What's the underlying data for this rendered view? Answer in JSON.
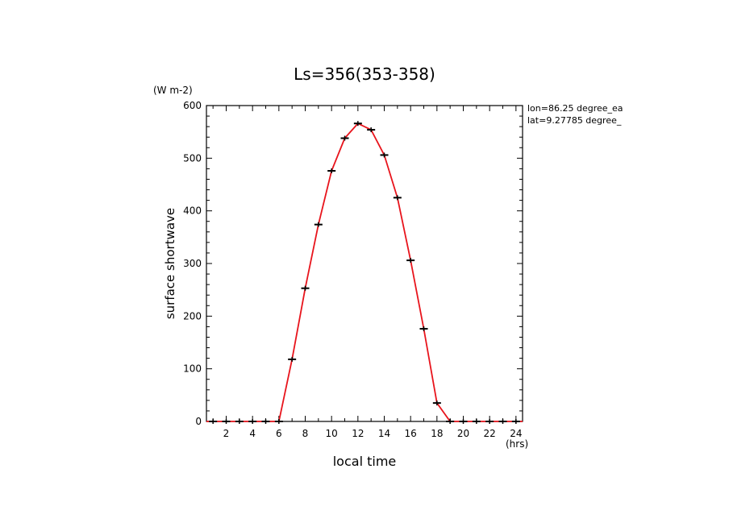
{
  "chart_data": {
    "type": "line",
    "title": "Ls=356(353-358)",
    "xlabel": "local time",
    "ylabel": "surface shortwave",
    "x_unit": "(hrs)",
    "y_unit": "(W m-2)",
    "annotations": [
      "lon=86.25 degree_ea",
      "lat=9.27785 degree_"
    ],
    "xlim": [
      0.5,
      24.5
    ],
    "ylim": [
      0,
      600
    ],
    "x_ticks": [
      "2",
      "4",
      "6",
      "8",
      "10",
      "12",
      "14",
      "16",
      "18",
      "20",
      "22",
      "24"
    ],
    "y_ticks": [
      "0",
      "100",
      "200",
      "300",
      "400",
      "500",
      "600"
    ],
    "x": [
      1,
      2,
      3,
      4,
      5,
      6,
      7,
      8,
      9,
      10,
      11,
      12,
      13,
      14,
      15,
      16,
      17,
      18,
      19,
      20,
      21,
      22,
      23,
      24
    ],
    "series": [
      {
        "values": [
          0,
          0,
          0,
          0,
          0,
          0,
          118,
          253,
          374,
          476,
          538,
          566,
          554,
          506,
          425,
          306,
          176,
          35,
          0,
          0,
          0,
          0,
          0,
          0
        ],
        "color": "#e8141c"
      }
    ],
    "grid": false,
    "legend": "none"
  }
}
